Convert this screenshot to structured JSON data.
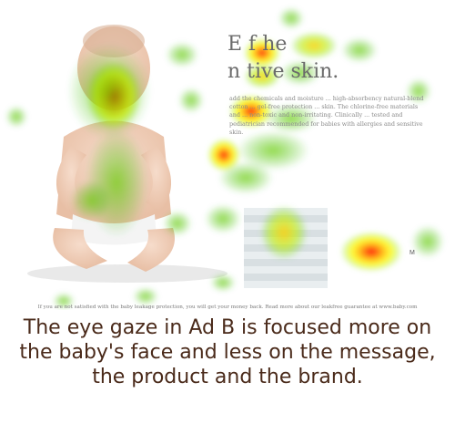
{
  "ad": {
    "headline_line1": "E                 f      he",
    "headline_line2": "n                   tive skin.",
    "body_copy": "add the chemicals and moisture ... high-absorbency natural-blend cotton ... gel-free protection ... skin. The chlorine-free materials and ... non-toxic and non-irritating. Clinically ... tested and pediatrician recommended for babies with allergies and sensitive skin.",
    "trademark": "M",
    "guarantee_note": "If you are not satisfied with the baby leakage protection, you will get your money back. Read more about our leakfree guarantee at www.baby.com"
  },
  "caption": {
    "text": "The eye gaze in Ad B is focused more on the baby's face and less on the message, the product and the brand."
  },
  "colors": {
    "caption_text": "#4a2a1a",
    "heat_red": "#ff0000",
    "heat_yellow": "#ffff00",
    "heat_green": "#33cc00"
  }
}
